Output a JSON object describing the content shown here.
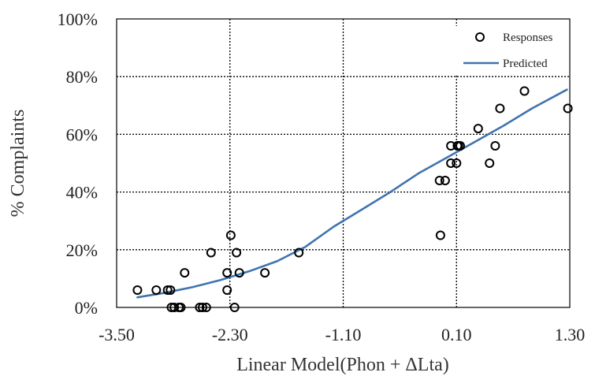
{
  "chart_data": {
    "type": "scatter",
    "title": "",
    "xlabel": "Linear Model(Phon + ΔLta)",
    "ylabel": "% Complaints",
    "xlim": [
      -3.5,
      1.3
    ],
    "ylim": [
      0,
      100
    ],
    "x_ticks": [
      "-3.50",
      "-2.30",
      "-1.10",
      "0.10",
      "1.30"
    ],
    "y_ticks": [
      "0%",
      "20%",
      "40%",
      "60%",
      "80%",
      "100%"
    ],
    "grid": true,
    "legend_position": "top-right",
    "series": [
      {
        "name": "Responses",
        "kind": "scatter",
        "marker": "open-circle",
        "color": "#000000",
        "x": [
          -3.28,
          -3.08,
          -2.96,
          -2.93,
          -2.92,
          -2.89,
          -2.84,
          -2.82,
          -2.78,
          -2.62,
          -2.59,
          -2.55,
          -2.5,
          -2.33,
          -2.33,
          -2.29,
          -2.25,
          -2.23,
          -2.2,
          -1.93,
          -1.57,
          -0.07,
          -0.08,
          -0.02,
          0.04,
          0.04,
          0.1,
          0.14,
          0.11,
          0.12,
          0.33,
          0.45,
          0.51,
          0.56,
          0.82,
          1.28
        ],
        "y": [
          6,
          6,
          6,
          6,
          0,
          0,
          0,
          0,
          12,
          0,
          0,
          0,
          19,
          12,
          6,
          25,
          0,
          19,
          12,
          12,
          19,
          25,
          44,
          44,
          50,
          56,
          50,
          56,
          56,
          56,
          62,
          50,
          56,
          69,
          75,
          69
        ]
      },
      {
        "name": "Predicted",
        "kind": "line",
        "color": "#3f74b0",
        "x": [
          -3.28,
          -3.0,
          -2.7,
          -2.4,
          -2.1,
          -1.8,
          -1.5,
          -1.2,
          -0.9,
          -0.6,
          -0.3,
          0.0,
          0.3,
          0.6,
          0.9,
          1.27
        ],
        "y": [
          3.5,
          5,
          7,
          9.5,
          12.5,
          16,
          21,
          28,
          34,
          40,
          46.5,
          52,
          57.5,
          63,
          69,
          75.5
        ]
      }
    ]
  }
}
